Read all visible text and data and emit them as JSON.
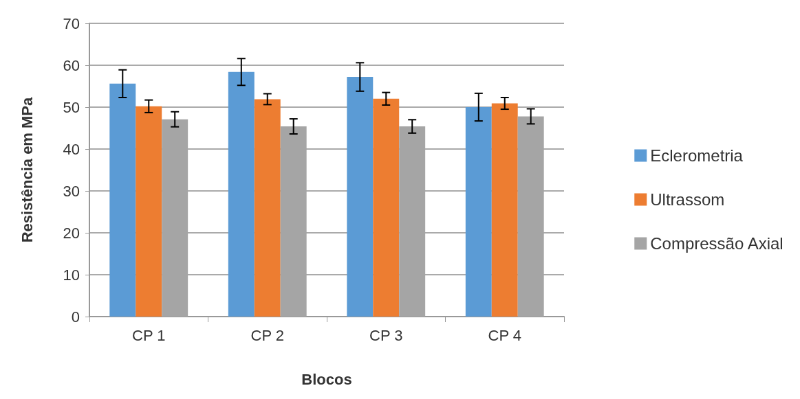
{
  "chart_data": {
    "type": "bar",
    "xlabel": "Blocos",
    "ylabel": "Resistência em MPa",
    "categories": [
      "CP 1",
      "CP 2",
      "CP 3",
      "CP 4"
    ],
    "series": [
      {
        "name": "Eclerometria",
        "color": "#5b9bd5",
        "values": [
          55.6,
          58.4,
          57.2,
          50.0
        ],
        "errors": [
          3.3,
          3.2,
          3.4,
          3.3
        ]
      },
      {
        "name": "Ultrassom",
        "color": "#ed7d31",
        "values": [
          50.2,
          51.9,
          52.0,
          50.9
        ],
        "errors": [
          1.5,
          1.3,
          1.5,
          1.4
        ]
      },
      {
        "name": "Compressão Axial",
        "color": "#a5a5a5",
        "values": [
          47.1,
          45.4,
          45.4,
          47.8
        ],
        "errors": [
          1.8,
          1.8,
          1.6,
          1.8
        ]
      }
    ],
    "ylim": [
      0,
      70
    ],
    "yticks": [
      0,
      10,
      20,
      30,
      40,
      50,
      60,
      70
    ],
    "grid": "y",
    "legend": "right"
  }
}
